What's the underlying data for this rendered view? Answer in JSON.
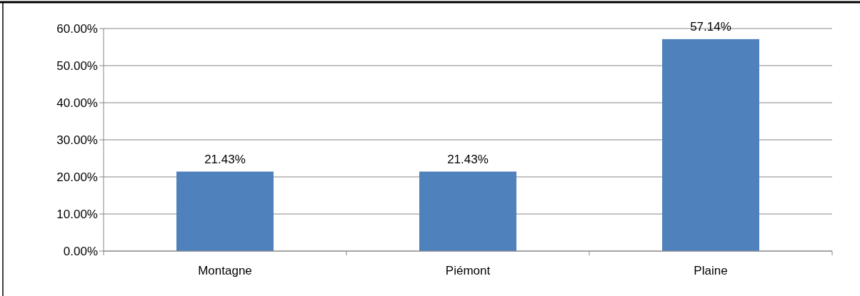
{
  "chart_data": {
    "type": "bar",
    "categories": [
      "Montagne",
      "Piémont",
      "Plaine"
    ],
    "values": [
      21.43,
      21.43,
      57.14
    ],
    "color": "#4f81bd",
    "value_labels": [
      "21.43%",
      "21.43%",
      "57.14%"
    ],
    "ylim": [
      0,
      60
    ],
    "yticks": [
      {
        "value": 0,
        "label": "0.00%"
      },
      {
        "value": 10,
        "label": "10.00%"
      },
      {
        "value": 20,
        "label": "20.00%"
      },
      {
        "value": 30,
        "label": "30.00%"
      },
      {
        "value": 40,
        "label": "40.00%"
      },
      {
        "value": 50,
        "label": "50.00%"
      },
      {
        "value": 60,
        "label": "60.00%"
      }
    ],
    "grid": "y"
  }
}
